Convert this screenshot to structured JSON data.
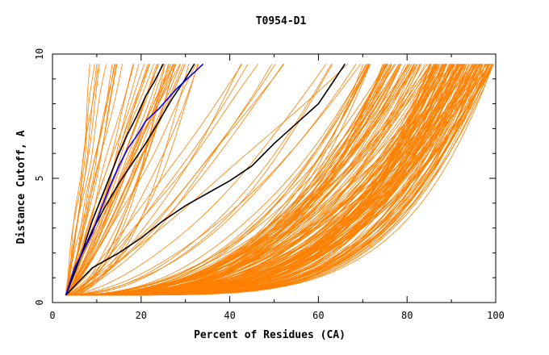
{
  "chart_data": {
    "type": "line",
    "title": "T0954-D1",
    "xlabel": "Percent of Residues (CA)",
    "ylabel": "Distance Cutoff, A",
    "xlim": [
      0,
      100
    ],
    "ylim": [
      0,
      10
    ],
    "x_ticks": [
      0,
      20,
      40,
      60,
      80,
      100
    ],
    "y_ticks": [
      0,
      5,
      10
    ],
    "y_max_plotted": 9.6,
    "colors": {
      "orange": "#ff8000",
      "black": "#000000",
      "blue": "#0000ff",
      "frame": "#000000"
    },
    "highlight_series": [
      {
        "color": "black",
        "points": [
          [
            3,
            0.3
          ],
          [
            5,
            1.2
          ],
          [
            7,
            2.2
          ],
          [
            9,
            3.3
          ],
          [
            11,
            4.2
          ],
          [
            13,
            5.1
          ],
          [
            15,
            6.0
          ],
          [
            17,
            6.8
          ],
          [
            19,
            7.5
          ],
          [
            21,
            8.3
          ],
          [
            23,
            8.9
          ],
          [
            25,
            9.6
          ]
        ]
      },
      {
        "color": "black",
        "points": [
          [
            3,
            0.3
          ],
          [
            6,
            1.7
          ],
          [
            9,
            2.9
          ],
          [
            12,
            3.9
          ],
          [
            15,
            4.8
          ],
          [
            18,
            5.6
          ],
          [
            21,
            6.4
          ],
          [
            24,
            7.3
          ],
          [
            27,
            8.2
          ],
          [
            30,
            9.0
          ],
          [
            32,
            9.6
          ]
        ]
      },
      {
        "color": "black",
        "points": [
          [
            3,
            0.3
          ],
          [
            9,
            1.4
          ],
          [
            15,
            2.0
          ],
          [
            20,
            2.6
          ],
          [
            25,
            3.3
          ],
          [
            30,
            3.9
          ],
          [
            35,
            4.4
          ],
          [
            40,
            4.9
          ],
          [
            45,
            5.5
          ],
          [
            50,
            6.4
          ],
          [
            55,
            7.2
          ],
          [
            60,
            8.0
          ],
          [
            63,
            8.8
          ],
          [
            66,
            9.6
          ]
        ]
      },
      {
        "color": "blue",
        "points": [
          [
            3,
            0.3
          ],
          [
            5,
            1.4
          ],
          [
            7,
            2.1
          ],
          [
            9,
            2.8
          ],
          [
            11,
            3.8
          ],
          [
            13,
            4.7
          ],
          [
            15,
            5.5
          ],
          [
            17,
            6.2
          ],
          [
            19,
            6.7
          ],
          [
            21,
            7.3
          ],
          [
            24,
            7.8
          ],
          [
            28,
            8.6
          ],
          [
            31,
            9.1
          ],
          [
            34,
            9.6
          ]
        ]
      }
    ],
    "background_families": [
      {
        "name": "steep",
        "count": 34,
        "x_end_range": [
          8,
          30
        ],
        "shape_range": [
          0.9,
          1.3
        ],
        "color": "orange"
      },
      {
        "name": "middle",
        "count": 24,
        "x_end_range": [
          25,
          70
        ],
        "shape_range": [
          1.0,
          2.2
        ],
        "color": "orange"
      },
      {
        "name": "shallow-a",
        "count": 90,
        "x_end_range": [
          70,
          99
        ],
        "shape_range": [
          2.2,
          3.6
        ],
        "color": "orange"
      },
      {
        "name": "shallow-b",
        "count": 90,
        "x_end_range": [
          85,
          100
        ],
        "shape_range": [
          3.0,
          5.0
        ],
        "color": "orange"
      }
    ]
  }
}
